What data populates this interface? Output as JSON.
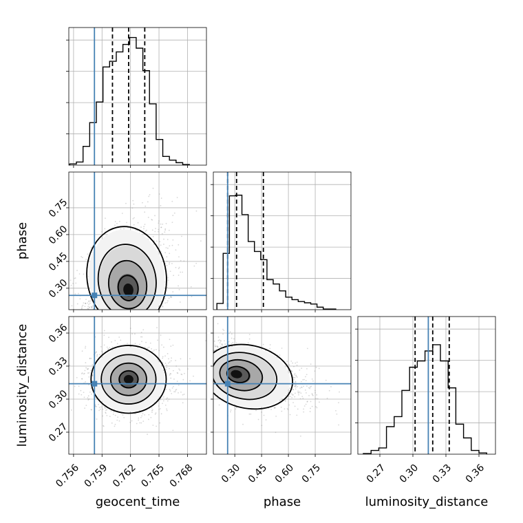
{
  "chart_data": {
    "type": "corner",
    "parameters": [
      "geocent_time",
      "phase",
      "luminosity_distance"
    ],
    "axis_labels": {
      "x": [
        "geocent_time",
        "phase",
        "luminosity_distance"
      ],
      "y": [
        "phase",
        "luminosity_distance"
      ]
    },
    "ranges": {
      "geocent_time": [
        0.7555,
        0.77
      ],
      "phase": [
        0.18,
        0.95
      ],
      "luminosity_distance": [
        0.25,
        0.375
      ]
    },
    "ticks": {
      "geocent_time": [
        {
          "v": 0.756,
          "label": "0.756"
        },
        {
          "v": 0.759,
          "label": "0.759"
        },
        {
          "v": 0.762,
          "label": "0.762"
        },
        {
          "v": 0.765,
          "label": "0.765"
        },
        {
          "v": 0.768,
          "label": "0.768"
        }
      ],
      "phase": [
        {
          "v": 0.3,
          "label": "0.30"
        },
        {
          "v": 0.45,
          "label": "0.45"
        },
        {
          "v": 0.6,
          "label": "0.60"
        },
        {
          "v": 0.75,
          "label": "0.75"
        }
      ],
      "luminosity_distance": [
        {
          "v": 0.27,
          "label": "0.27"
        },
        {
          "v": 0.3,
          "label": "0.30"
        },
        {
          "v": 0.33,
          "label": "0.33"
        },
        {
          "v": 0.36,
          "label": "0.36"
        }
      ]
    },
    "truths": {
      "geocent_time": 0.7582,
      "phase": 0.26,
      "luminosity_distance": 0.314
    },
    "quantiles": {
      "geocent_time": [
        0.7601,
        0.7618,
        0.7635
      ],
      "phase": [
        0.26,
        0.31,
        0.46
      ],
      "luminosity_distance": [
        0.302,
        0.318,
        0.333
      ]
    },
    "histograms": {
      "geocent_time": {
        "edges": [
          0.7556,
          0.7563,
          0.757,
          0.7577,
          0.7584,
          0.7591,
          0.7598,
          0.7605,
          0.7612,
          0.7619,
          0.7626,
          0.7633,
          0.764,
          0.7647,
          0.7654,
          0.7661,
          0.7668,
          0.7675,
          0.7682
        ],
        "counts": [
          0.2,
          0.5,
          3.0,
          6.8,
          10.1,
          15.7,
          16.6,
          18.1,
          19.3,
          20.4,
          18.7,
          15.1,
          9.8,
          4.1,
          1.4,
          0.8,
          0.4,
          0.1
        ]
      },
      "phase": {
        "edges": [
          0.2,
          0.235,
          0.27,
          0.305,
          0.34,
          0.375,
          0.41,
          0.445,
          0.48,
          0.515,
          0.55,
          0.585,
          0.62,
          0.655,
          0.69,
          0.725,
          0.76,
          0.795,
          0.83,
          0.865
        ],
        "counts": [
          1.0,
          9.0,
          18.2,
          18.3,
          15.2,
          10.9,
          9.3,
          8.0,
          4.8,
          4.1,
          3.0,
          2.0,
          1.6,
          1.3,
          1.1,
          0.9,
          0.4,
          0.1,
          0.1
        ]
      },
      "luminosity_distance": {
        "edges": [
          0.255,
          0.262,
          0.269,
          0.276,
          0.283,
          0.29,
          0.297,
          0.304,
          0.311,
          0.318,
          0.325,
          0.332,
          0.339,
          0.346,
          0.353,
          0.36,
          0.367
        ],
        "counts": [
          0.1,
          0.6,
          1.0,
          4.4,
          6.0,
          10.2,
          13.9,
          14.9,
          16.5,
          17.5,
          14.9,
          10.6,
          4.8,
          2.6,
          0.6,
          0.2
        ]
      }
    },
    "densities_2d": [
      {
        "x": "geocent_time",
        "y": "phase",
        "center": [
          0.7618,
          0.28
        ],
        "sigma": [
          0.0019,
          0.095
        ],
        "corr": 0.3,
        "skew_y": true
      },
      {
        "x": "geocent_time",
        "y": "luminosity_distance",
        "center": [
          0.7618,
          0.318
        ],
        "sigma": [
          0.0018,
          0.014
        ],
        "corr": 0.0
      },
      {
        "x": "phase",
        "y": "luminosity_distance",
        "center": [
          0.3,
          0.323
        ],
        "sigma": [
          0.085,
          0.013
        ],
        "corr": -0.5,
        "skew_x": true
      }
    ],
    "grid": true,
    "colors": {
      "truth": "#4682b4",
      "hist": "#000000",
      "quantile": "#000000",
      "points": "#8c8c8c"
    }
  }
}
